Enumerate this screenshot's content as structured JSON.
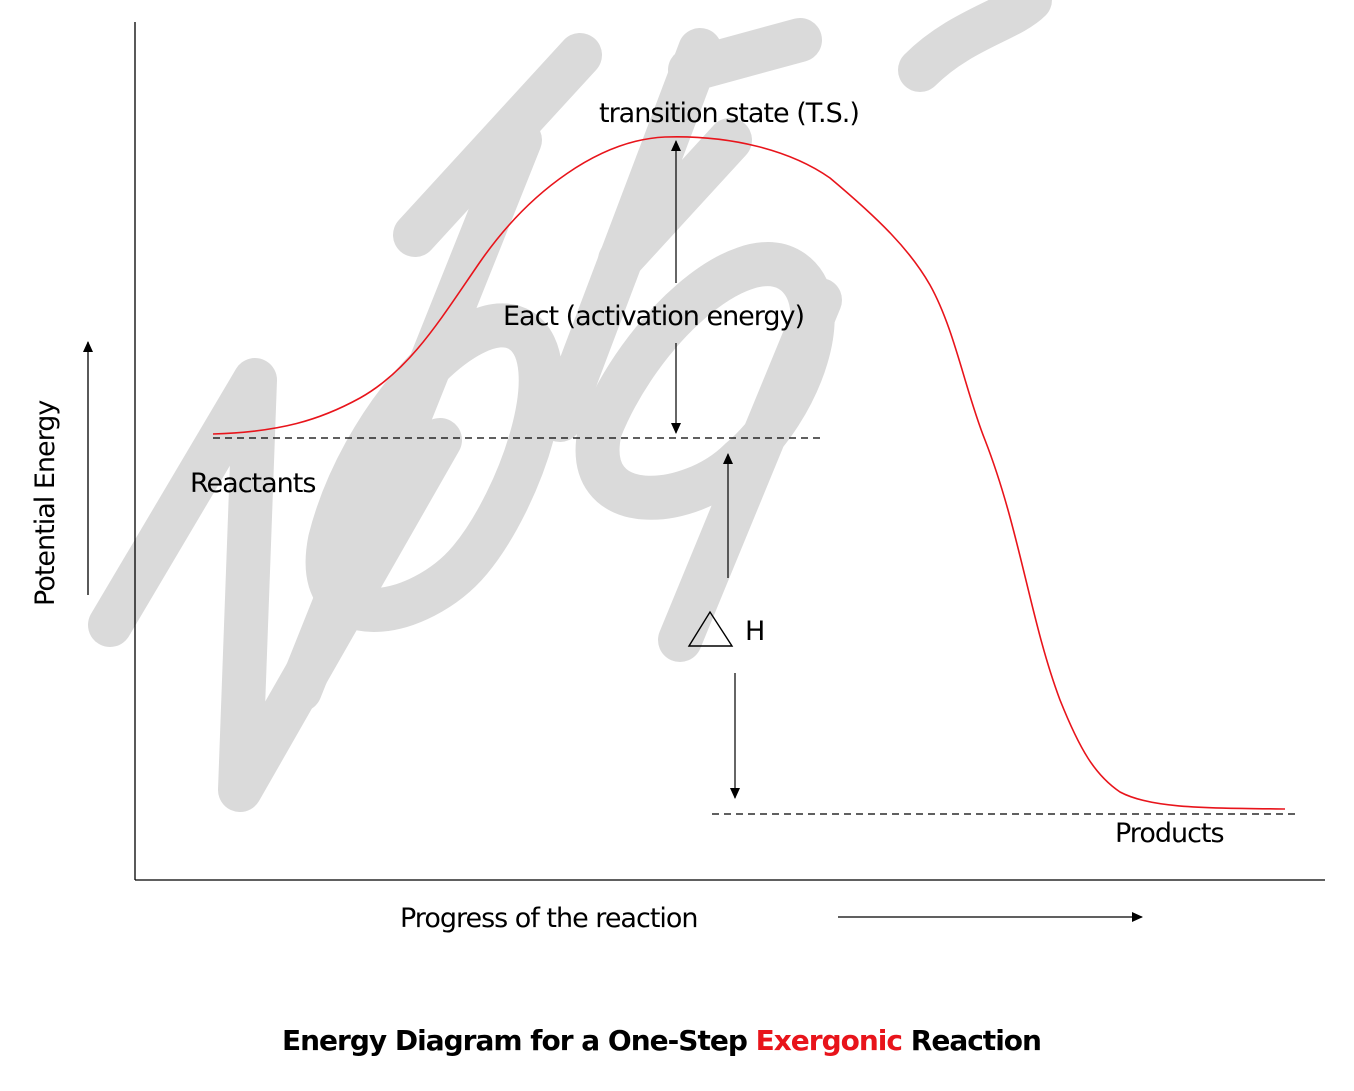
{
  "labels": {
    "transition_state": "transition state (T.S.)",
    "activation_energy": "Eact (activation energy)",
    "reactants": "Reactants",
    "products": "Products",
    "enthalpy_h": "H",
    "y_axis": "Potential Energy",
    "x_axis": "Progress of the reaction"
  },
  "caption": {
    "before": "Energy Diagram for a One-Step ",
    "highlight": "Exergonic",
    "after": " Reaction"
  },
  "watermark": {
    "text": "NOT FOR SALE"
  },
  "colors": {
    "curve": "#e8141b",
    "highlight": "#e8141b",
    "watermark": "#dadada",
    "ink": "#000000"
  }
}
